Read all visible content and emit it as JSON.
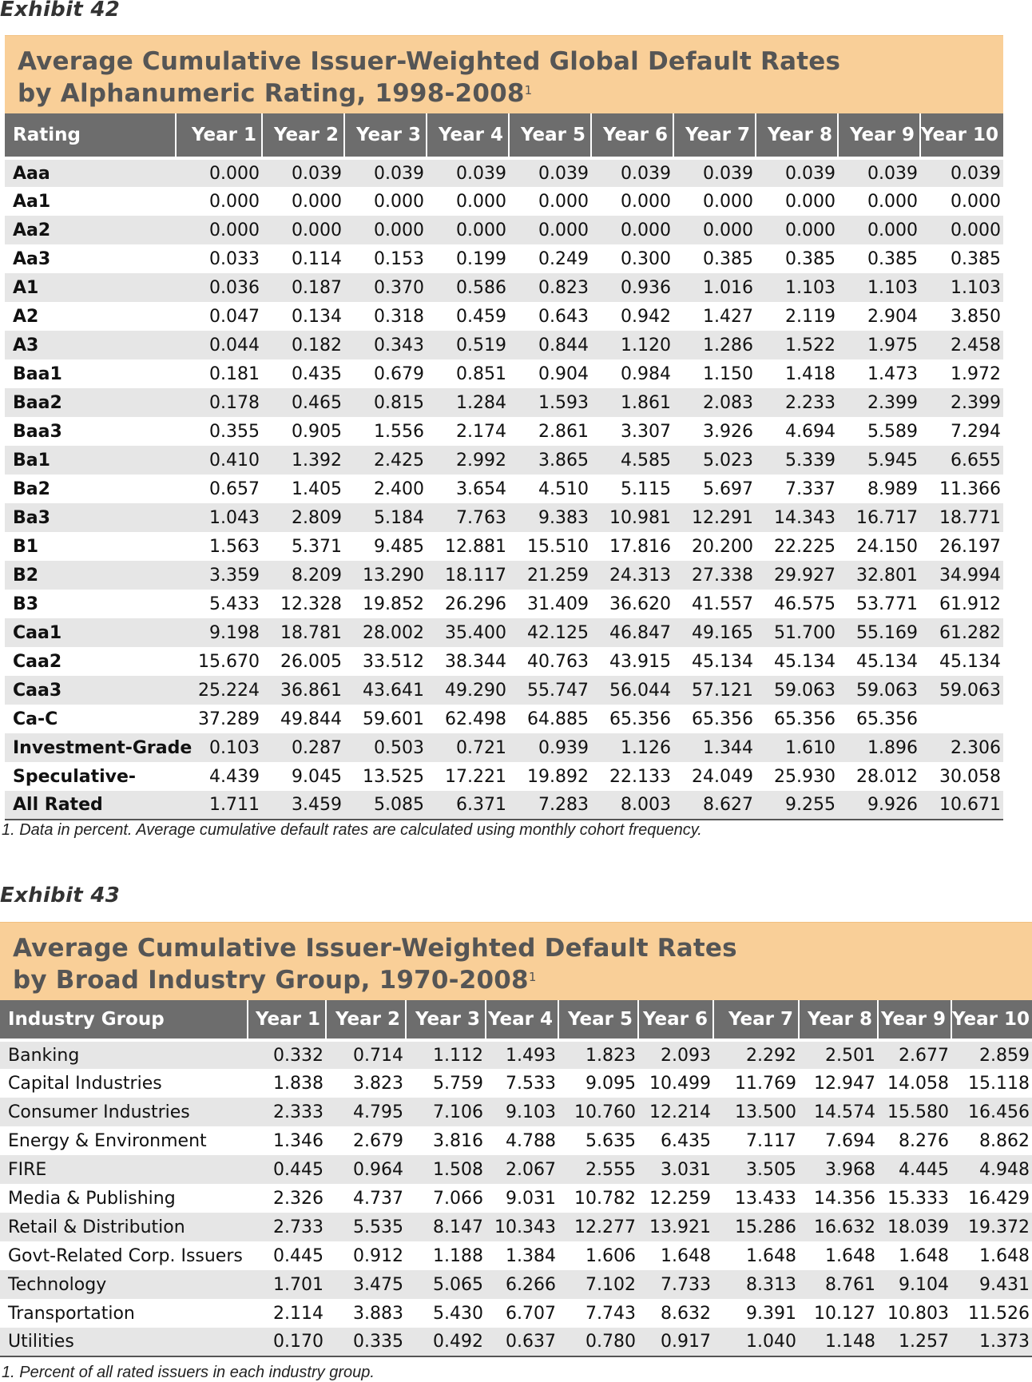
{
  "exhibit1": {
    "label": "Exhibit 42",
    "title_line1": "Average Cumulative Issuer-Weighted Global Default Rates",
    "title_line2": "by Alphanumeric Rating, 1998-2008",
    "title_sup": "1",
    "headers": [
      "Rating",
      "Year 1",
      "Year 2",
      "Year 3",
      "Year 4",
      "Year 5",
      "Year 6",
      "Year 7",
      "Year 8",
      "Year 9",
      "Year 10"
    ],
    "rows": [
      [
        "Aaa",
        "0.000",
        "0.039",
        "0.039",
        "0.039",
        "0.039",
        "0.039",
        "0.039",
        "0.039",
        "0.039",
        "0.039"
      ],
      [
        "Aa1",
        "0.000",
        "0.000",
        "0.000",
        "0.000",
        "0.000",
        "0.000",
        "0.000",
        "0.000",
        "0.000",
        "0.000"
      ],
      [
        "Aa2",
        "0.000",
        "0.000",
        "0.000",
        "0.000",
        "0.000",
        "0.000",
        "0.000",
        "0.000",
        "0.000",
        "0.000"
      ],
      [
        "Aa3",
        "0.033",
        "0.114",
        "0.153",
        "0.199",
        "0.249",
        "0.300",
        "0.385",
        "0.385",
        "0.385",
        "0.385"
      ],
      [
        "A1",
        "0.036",
        "0.187",
        "0.370",
        "0.586",
        "0.823",
        "0.936",
        "1.016",
        "1.103",
        "1.103",
        "1.103"
      ],
      [
        "A2",
        "0.047",
        "0.134",
        "0.318",
        "0.459",
        "0.643",
        "0.942",
        "1.427",
        "2.119",
        "2.904",
        "3.850"
      ],
      [
        "A3",
        "0.044",
        "0.182",
        "0.343",
        "0.519",
        "0.844",
        "1.120",
        "1.286",
        "1.522",
        "1.975",
        "2.458"
      ],
      [
        "Baa1",
        "0.181",
        "0.435",
        "0.679",
        "0.851",
        "0.904",
        "0.984",
        "1.150",
        "1.418",
        "1.473",
        "1.972"
      ],
      [
        "Baa2",
        "0.178",
        "0.465",
        "0.815",
        "1.284",
        "1.593",
        "1.861",
        "2.083",
        "2.233",
        "2.399",
        "2.399"
      ],
      [
        "Baa3",
        "0.355",
        "0.905",
        "1.556",
        "2.174",
        "2.861",
        "3.307",
        "3.926",
        "4.694",
        "5.589",
        "7.294"
      ],
      [
        "Ba1",
        "0.410",
        "1.392",
        "2.425",
        "2.992",
        "3.865",
        "4.585",
        "5.023",
        "5.339",
        "5.945",
        "6.655"
      ],
      [
        "Ba2",
        "0.657",
        "1.405",
        "2.400",
        "3.654",
        "4.510",
        "5.115",
        "5.697",
        "7.337",
        "8.989",
        "11.366"
      ],
      [
        "Ba3",
        "1.043",
        "2.809",
        "5.184",
        "7.763",
        "9.383",
        "10.981",
        "12.291",
        "14.343",
        "16.717",
        "18.771"
      ],
      [
        "B1",
        "1.563",
        "5.371",
        "9.485",
        "12.881",
        "15.510",
        "17.816",
        "20.200",
        "22.225",
        "24.150",
        "26.197"
      ],
      [
        "B2",
        "3.359",
        "8.209",
        "13.290",
        "18.117",
        "21.259",
        "24.313",
        "27.338",
        "29.927",
        "32.801",
        "34.994"
      ],
      [
        "B3",
        "5.433",
        "12.328",
        "19.852",
        "26.296",
        "31.409",
        "36.620",
        "41.557",
        "46.575",
        "53.771",
        "61.912"
      ],
      [
        "Caa1",
        "9.198",
        "18.781",
        "28.002",
        "35.400",
        "42.125",
        "46.847",
        "49.165",
        "51.700",
        "55.169",
        "61.282"
      ],
      [
        "Caa2",
        "15.670",
        "26.005",
        "33.512",
        "38.344",
        "40.763",
        "43.915",
        "45.134",
        "45.134",
        "45.134",
        "45.134"
      ],
      [
        "Caa3",
        "25.224",
        "36.861",
        "43.641",
        "49.290",
        "55.747",
        "56.044",
        "57.121",
        "59.063",
        "59.063",
        "59.063"
      ],
      [
        "Ca-C",
        "37.289",
        "49.844",
        "59.601",
        "62.498",
        "64.885",
        "65.356",
        "65.356",
        "65.356",
        "65.356",
        ""
      ],
      [
        "Investment-Grade",
        "0.103",
        "0.287",
        "0.503",
        "0.721",
        "0.939",
        "1.126",
        "1.344",
        "1.610",
        "1.896",
        "2.306"
      ],
      [
        "Speculative-",
        "4.439",
        "9.045",
        "13.525",
        "17.221",
        "19.892",
        "22.133",
        "24.049",
        "25.930",
        "28.012",
        "30.058"
      ],
      [
        "All Rated",
        "1.711",
        "3.459",
        "5.085",
        "6.371",
        "7.283",
        "8.003",
        "8.627",
        "9.255",
        "9.926",
        "10.671"
      ]
    ],
    "footnote": "1. Data in percent. Average cumulative default rates are calculated using monthly cohort frequency."
  },
  "exhibit2": {
    "label": "Exhibit 43",
    "title_line1": "Average Cumulative Issuer-Weighted Default Rates",
    "title_line2": "by Broad Industry Group, 1970-2008",
    "title_sup": "1",
    "headers": [
      "Industry Group",
      "Year 1",
      "Year 2",
      "Year 3",
      "Year 4",
      "Year 5",
      "Year 6",
      "Year 7",
      "Year 8",
      "Year 9",
      "Year 10"
    ],
    "rows": [
      [
        "Banking",
        "0.332",
        "0.714",
        "1.112",
        "1.493",
        "1.823",
        "2.093",
        "2.292",
        "2.501",
        "2.677",
        "2.859"
      ],
      [
        "Capital Industries",
        "1.838",
        "3.823",
        "5.759",
        "7.533",
        "9.095",
        "10.499",
        "11.769",
        "12.947",
        "14.058",
        "15.118"
      ],
      [
        "Consumer Industries",
        "2.333",
        "4.795",
        "7.106",
        "9.103",
        "10.760",
        "12.214",
        "13.500",
        "14.574",
        "15.580",
        "16.456"
      ],
      [
        "Energy & Environment",
        "1.346",
        "2.679",
        "3.816",
        "4.788",
        "5.635",
        "6.435",
        "7.117",
        "7.694",
        "8.276",
        "8.862"
      ],
      [
        "FIRE",
        "0.445",
        "0.964",
        "1.508",
        "2.067",
        "2.555",
        "3.031",
        "3.505",
        "3.968",
        "4.445",
        "4.948"
      ],
      [
        "Media & Publishing",
        "2.326",
        "4.737",
        "7.066",
        "9.031",
        "10.782",
        "12.259",
        "13.433",
        "14.356",
        "15.333",
        "16.429"
      ],
      [
        "Retail & Distribution",
        "2.733",
        "5.535",
        "8.147",
        "10.343",
        "12.277",
        "13.921",
        "15.286",
        "16.632",
        "18.039",
        "19.372"
      ],
      [
        "Govt-Related Corp. Issuers",
        "0.445",
        "0.912",
        "1.188",
        "1.384",
        "1.606",
        "1.648",
        "1.648",
        "1.648",
        "1.648",
        "1.648"
      ],
      [
        "Technology",
        "1.701",
        "3.475",
        "5.065",
        "6.266",
        "7.102",
        "7.733",
        "8.313",
        "8.761",
        "9.104",
        "9.431"
      ],
      [
        "Transportation",
        "2.114",
        "3.883",
        "5.430",
        "6.707",
        "7.743",
        "8.632",
        "9.391",
        "10.127",
        "10.803",
        "11.526"
      ],
      [
        "Utilities",
        "0.170",
        "0.335",
        "0.492",
        "0.637",
        "0.780",
        "0.917",
        "1.040",
        "1.148",
        "1.257",
        "1.373"
      ]
    ],
    "footnote": "1. Percent of all rated issuers in each industry group."
  }
}
